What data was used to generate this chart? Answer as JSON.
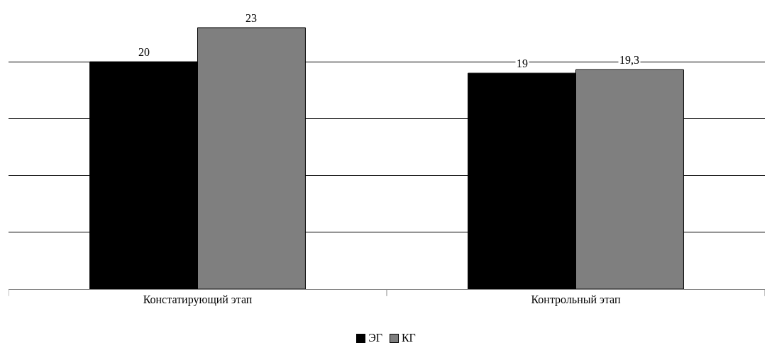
{
  "chart_data": {
    "type": "bar",
    "categories": [
      "Констатирующий этап",
      "Контрольный этап"
    ],
    "series": [
      {
        "name": "ЭГ",
        "color": "#000000",
        "values": [
          20,
          19
        ],
        "value_labels": [
          "20",
          "19"
        ]
      },
      {
        "name": "КГ",
        "color": "#7f7f7f",
        "values": [
          23,
          19.3
        ],
        "value_labels": [
          "23",
          "19,3"
        ]
      }
    ],
    "yticks": [
      {
        "value": 0,
        "label": null
      },
      {
        "value": 5,
        "label": null
      },
      {
        "value": 10,
        "label": null
      },
      {
        "value": 15,
        "label": null
      },
      {
        "value": 20,
        "label": null
      }
    ],
    "grid": "y",
    "legend": "bottom",
    "tick_labels": "x"
  }
}
